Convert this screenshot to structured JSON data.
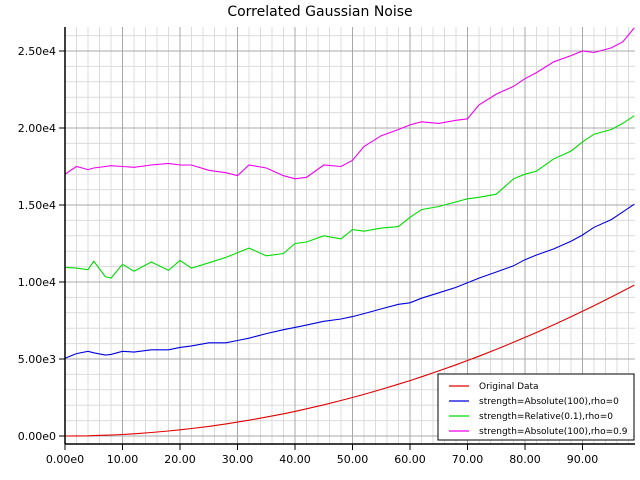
{
  "chart_data": {
    "type": "line",
    "title": "Correlated Gaussian Noise",
    "xlabel": "",
    "ylabel": "",
    "xlim": [
      0,
      99
    ],
    "ylim": [
      -500,
      26800
    ],
    "grid": true,
    "legend_position": "lower right",
    "x_ticks": [
      {
        "value": 0,
        "label": "0.00e0"
      },
      {
        "value": 10,
        "label": "10.00"
      },
      {
        "value": 20,
        "label": "20.00"
      },
      {
        "value": 30,
        "label": "30.00"
      },
      {
        "value": 40,
        "label": "40.00"
      },
      {
        "value": 50,
        "label": "50.00"
      },
      {
        "value": 60,
        "label": "60.00"
      },
      {
        "value": 70,
        "label": "70.00"
      },
      {
        "value": 80,
        "label": "80.00"
      },
      {
        "value": 90,
        "label": "90.00"
      }
    ],
    "y_ticks": [
      {
        "value": 0,
        "label": "0.00e0"
      },
      {
        "value": 5000,
        "label": "5.00e3"
      },
      {
        "value": 10000,
        "label": "1.00e4"
      },
      {
        "value": 15000,
        "label": "1.50e4"
      },
      {
        "value": 20000,
        "label": "2.00e4"
      },
      {
        "value": 25000,
        "label": "2.50e4"
      }
    ],
    "x_keypoints": [
      0,
      2,
      4,
      5,
      7,
      8,
      10,
      12,
      15,
      18,
      20,
      22,
      25,
      28,
      30,
      32,
      35,
      38,
      40,
      42,
      45,
      48,
      50,
      52,
      55,
      58,
      60,
      62,
      65,
      68,
      70,
      72,
      75,
      78,
      80,
      82,
      85,
      88,
      90,
      92,
      95,
      97,
      99
    ],
    "series": [
      {
        "name": "Original Data",
        "color": "#e00000",
        "values": [
          0,
          4,
          16,
          25,
          49,
          64,
          100,
          144,
          225,
          324,
          400,
          484,
          625,
          784,
          900,
          1024,
          1225,
          1444,
          1600,
          1764,
          2025,
          2304,
          2500,
          2704,
          3025,
          3364,
          3600,
          3844,
          4225,
          4624,
          4900,
          5184,
          5625,
          6084,
          6400,
          6724,
          7225,
          7744,
          8100,
          8464,
          9025,
          9409,
          9801
        ]
      },
      {
        "name": "strength=Absolute(100),rho=0",
        "color": "#0000dd",
        "values": [
          5050,
          5350,
          5500,
          5400,
          5250,
          5300,
          5500,
          5450,
          5600,
          5600,
          5750,
          5850,
          6050,
          6050,
          6200,
          6350,
          6650,
          6900,
          7050,
          7200,
          7450,
          7600,
          7750,
          7950,
          8250,
          8550,
          8650,
          8950,
          9300,
          9650,
          9950,
          10250,
          10650,
          11050,
          11450,
          11750,
          12150,
          12650,
          13050,
          13550,
          14050,
          14550,
          15050
        ]
      },
      {
        "name": "strength=Relative(0.1),rho=0",
        "color": "#00dd00",
        "values": [
          10950,
          10900,
          10800,
          11350,
          10350,
          10250,
          11150,
          10700,
          11300,
          10750,
          11400,
          10900,
          11250,
          11600,
          11900,
          12200,
          11700,
          11850,
          12500,
          12600,
          13000,
          12800,
          13400,
          13300,
          13500,
          13600,
          14200,
          14700,
          14900,
          15200,
          15400,
          15500,
          15700,
          16700,
          17000,
          17200,
          18000,
          18500,
          19100,
          19600,
          19900,
          20300,
          20800
        ]
      },
      {
        "name": "strength=Absolute(100),rho=0.9",
        "color": "#ee00ee",
        "values": [
          17000,
          17500,
          17300,
          17400,
          17500,
          17550,
          17500,
          17450,
          17600,
          17700,
          17600,
          17600,
          17250,
          17100,
          16900,
          17600,
          17400,
          16900,
          16700,
          16800,
          17600,
          17500,
          17900,
          18800,
          19500,
          19900,
          20200,
          20400,
          20300,
          20500,
          20600,
          21500,
          22200,
          22700,
          23200,
          23600,
          24300,
          24700,
          25000,
          24900,
          25200,
          25600,
          26500
        ]
      }
    ]
  }
}
